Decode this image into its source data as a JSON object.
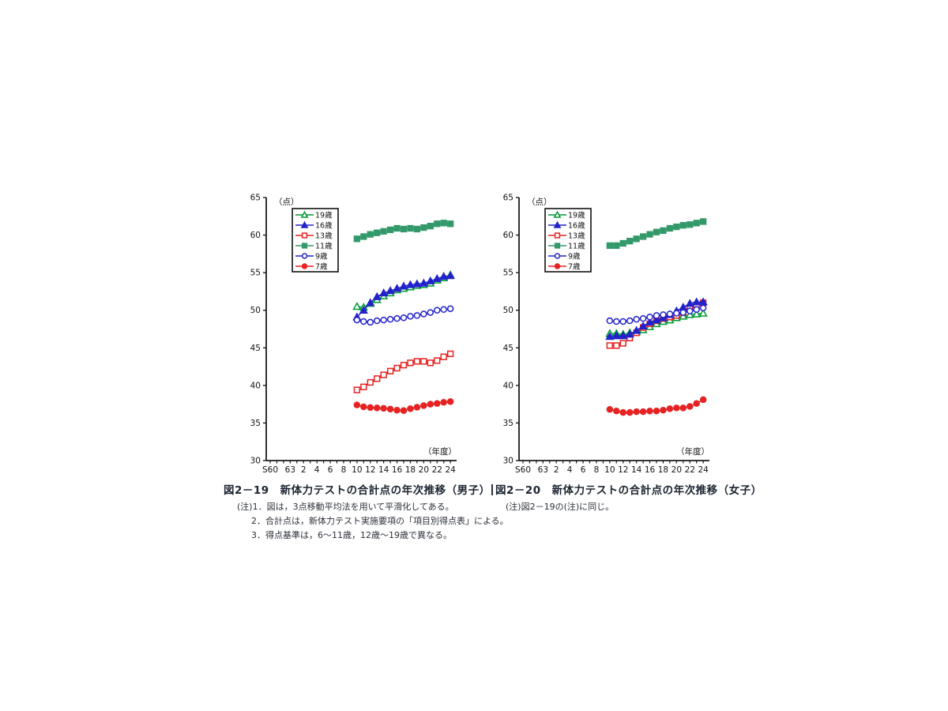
{
  "page": {
    "background": "#ffffff",
    "axis_color": "#1a1a1a",
    "text_color": "#1c2431"
  },
  "captions": [
    {
      "title": "図2－19　新体力テストの合計点の年次推移（男子）",
      "notes": [
        "(注)1．図は，3点移動平均法を用いて平滑化してある。",
        "2．合計点は，新体力テスト実施要項の「項目別得点表」による。",
        "3．得点基準は，6～11歳，12歳～19歳で異なる。"
      ]
    },
    {
      "title": "図2－20　新体力テストの合計点の年次推移（女子）",
      "notes": [
        "(注)図2－19の(注)に同じ。"
      ]
    }
  ],
  "chart_data": [
    {
      "type": "line",
      "title": "図2－19 新体力テストの合計点の年次推移（男子）",
      "ylabel": "（点）",
      "xlabel": "（年度）",
      "ylim": [
        30,
        65
      ],
      "ytick_step": 5,
      "grid": "off",
      "legend_position": "upper-left",
      "x_positions_total": 28,
      "series_start_pos": 13,
      "x_ticks": [
        {
          "label": "S60",
          "pos": 0
        },
        {
          "label": "63",
          "pos": 3
        },
        {
          "label": "2",
          "pos": 5
        },
        {
          "label": "4",
          "pos": 7
        },
        {
          "label": "6",
          "pos": 9
        },
        {
          "label": "8",
          "pos": 11
        },
        {
          "label": "10",
          "pos": 13
        },
        {
          "label": "12",
          "pos": 15
        },
        {
          "label": "14",
          "pos": 17
        },
        {
          "label": "16",
          "pos": 19
        },
        {
          "label": "18",
          "pos": 21
        },
        {
          "label": "20",
          "pos": 23
        },
        {
          "label": "22",
          "pos": 25
        },
        {
          "label": "24",
          "pos": 27
        }
      ],
      "series": [
        {
          "name": "19歳",
          "color": "#009933",
          "marker": "triangle",
          "fill": "open",
          "values": [
            50.5,
            50.4,
            50.9,
            51.4,
            51.9,
            52.3,
            52.7,
            52.9,
            53.1,
            53.3,
            53.4,
            53.6,
            54.0,
            54.3,
            54.7
          ]
        },
        {
          "name": "16歳",
          "color": "#2222cc",
          "marker": "triangle",
          "fill": "solid",
          "values": [
            49.1,
            50.0,
            51.0,
            51.8,
            52.3,
            52.6,
            52.9,
            53.2,
            53.4,
            53.5,
            53.6,
            53.9,
            54.2,
            54.5,
            54.6
          ]
        },
        {
          "name": "13歳",
          "color": "#e62222",
          "marker": "square",
          "fill": "open",
          "values": [
            39.4,
            39.8,
            40.4,
            40.9,
            41.4,
            41.9,
            42.3,
            42.7,
            43.0,
            43.2,
            43.2,
            43.0,
            43.3,
            43.8,
            44.2
          ]
        },
        {
          "name": "11歳",
          "color": "#33996b",
          "marker": "square",
          "fill": "solid",
          "values": [
            59.5,
            59.8,
            60.1,
            60.3,
            60.5,
            60.7,
            60.9,
            60.8,
            60.9,
            60.8,
            61.0,
            61.2,
            61.5,
            61.6,
            61.5
          ]
        },
        {
          "name": "9歳",
          "color": "#2222cc",
          "marker": "circle",
          "fill": "open",
          "values": [
            48.7,
            48.5,
            48.4,
            48.6,
            48.7,
            48.8,
            48.9,
            49.0,
            49.2,
            49.3,
            49.5,
            49.7,
            50.0,
            50.1,
            50.2
          ]
        },
        {
          "name": "7歳",
          "color": "#e62222",
          "marker": "circle",
          "fill": "solid",
          "values": [
            37.4,
            37.15,
            37.05,
            37.0,
            36.95,
            36.85,
            36.7,
            36.65,
            36.9,
            37.1,
            37.3,
            37.5,
            37.6,
            37.75,
            37.85
          ]
        }
      ]
    },
    {
      "type": "line",
      "title": "図2－20 新体力テストの合計点の年次推移（女子）",
      "ylabel": "（点）",
      "xlabel": "（年度）",
      "ylim": [
        30,
        65
      ],
      "ytick_step": 5,
      "grid": "off",
      "legend_position": "upper-left",
      "x_positions_total": 28,
      "series_start_pos": 13,
      "x_ticks": [
        {
          "label": "S60",
          "pos": 0
        },
        {
          "label": "63",
          "pos": 3
        },
        {
          "label": "2",
          "pos": 5
        },
        {
          "label": "4",
          "pos": 7
        },
        {
          "label": "6",
          "pos": 9
        },
        {
          "label": "8",
          "pos": 11
        },
        {
          "label": "10",
          "pos": 13
        },
        {
          "label": "12",
          "pos": 15
        },
        {
          "label": "14",
          "pos": 17
        },
        {
          "label": "16",
          "pos": 19
        },
        {
          "label": "18",
          "pos": 21
        },
        {
          "label": "20",
          "pos": 23
        },
        {
          "label": "22",
          "pos": 25
        },
        {
          "label": "24",
          "pos": 27
        }
      ],
      "series": [
        {
          "name": "19歳",
          "color": "#009933",
          "marker": "triangle",
          "fill": "open",
          "values": [
            46.9,
            46.9,
            46.8,
            47.0,
            47.1,
            47.4,
            47.8,
            48.2,
            48.5,
            48.7,
            49.0,
            49.2,
            49.4,
            49.5,
            49.6
          ]
        },
        {
          "name": "16歳",
          "color": "#2222cc",
          "marker": "triangle",
          "fill": "solid",
          "values": [
            46.5,
            46.6,
            46.6,
            46.8,
            47.3,
            47.9,
            48.4,
            48.7,
            49.0,
            49.4,
            49.9,
            50.4,
            50.9,
            51.1,
            51.1
          ]
        },
        {
          "name": "13歳",
          "color": "#e62222",
          "marker": "square",
          "fill": "open",
          "values": [
            45.3,
            45.3,
            45.6,
            46.3,
            47.0,
            47.7,
            48.2,
            48.6,
            48.9,
            49.1,
            49.3,
            49.7,
            50.2,
            50.7,
            51.0
          ]
        },
        {
          "name": "11歳",
          "color": "#33996b",
          "marker": "square",
          "fill": "solid",
          "values": [
            58.6,
            58.6,
            58.9,
            59.2,
            59.5,
            59.8,
            60.1,
            60.4,
            60.6,
            60.9,
            61.1,
            61.3,
            61.4,
            61.6,
            61.8
          ]
        },
        {
          "name": "9歳",
          "color": "#2222cc",
          "marker": "circle",
          "fill": "open",
          "values": [
            48.6,
            48.5,
            48.5,
            48.6,
            48.8,
            48.9,
            49.1,
            49.3,
            49.4,
            49.5,
            49.6,
            49.7,
            49.9,
            50.1,
            50.3
          ]
        },
        {
          "name": "7歳",
          "color": "#e62222",
          "marker": "circle",
          "fill": "solid",
          "values": [
            36.8,
            36.6,
            36.4,
            36.4,
            36.5,
            36.5,
            36.6,
            36.6,
            36.7,
            36.9,
            37.0,
            37.0,
            37.2,
            37.6,
            38.1
          ]
        }
      ]
    }
  ]
}
